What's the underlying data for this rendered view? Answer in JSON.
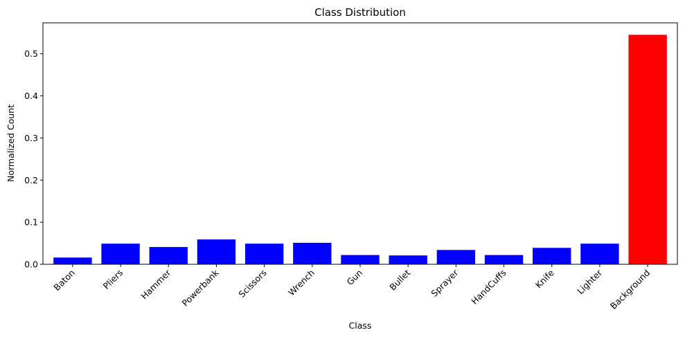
{
  "chart_data": {
    "type": "bar",
    "title": "Class Distribution",
    "xlabel": "Class",
    "ylabel": "Normalized Count",
    "categories": [
      "Baton",
      "Pliers",
      "Hammer",
      "Powerbank",
      "Scissors",
      "Wrench",
      "Gun",
      "Bullet",
      "Sprayer",
      "HandCuffs",
      "Knife",
      "Lighter",
      "Background"
    ],
    "values": [
      0.016,
      0.049,
      0.041,
      0.059,
      0.049,
      0.051,
      0.022,
      0.021,
      0.034,
      0.022,
      0.039,
      0.049,
      0.545
    ],
    "bar_colors": [
      "#0000ff",
      "#0000ff",
      "#0000ff",
      "#0000ff",
      "#0000ff",
      "#0000ff",
      "#0000ff",
      "#0000ff",
      "#0000ff",
      "#0000ff",
      "#0000ff",
      "#0000ff",
      "#ff0000"
    ],
    "ylim": [
      0,
      0.5735
    ],
    "yticks": [
      0.0,
      0.1,
      0.2,
      0.3,
      0.4,
      0.5
    ],
    "ytick_labels": [
      "0.0",
      "0.1",
      "0.2",
      "0.3",
      "0.4",
      "0.5"
    ],
    "grid": false,
    "legend": "none"
  }
}
